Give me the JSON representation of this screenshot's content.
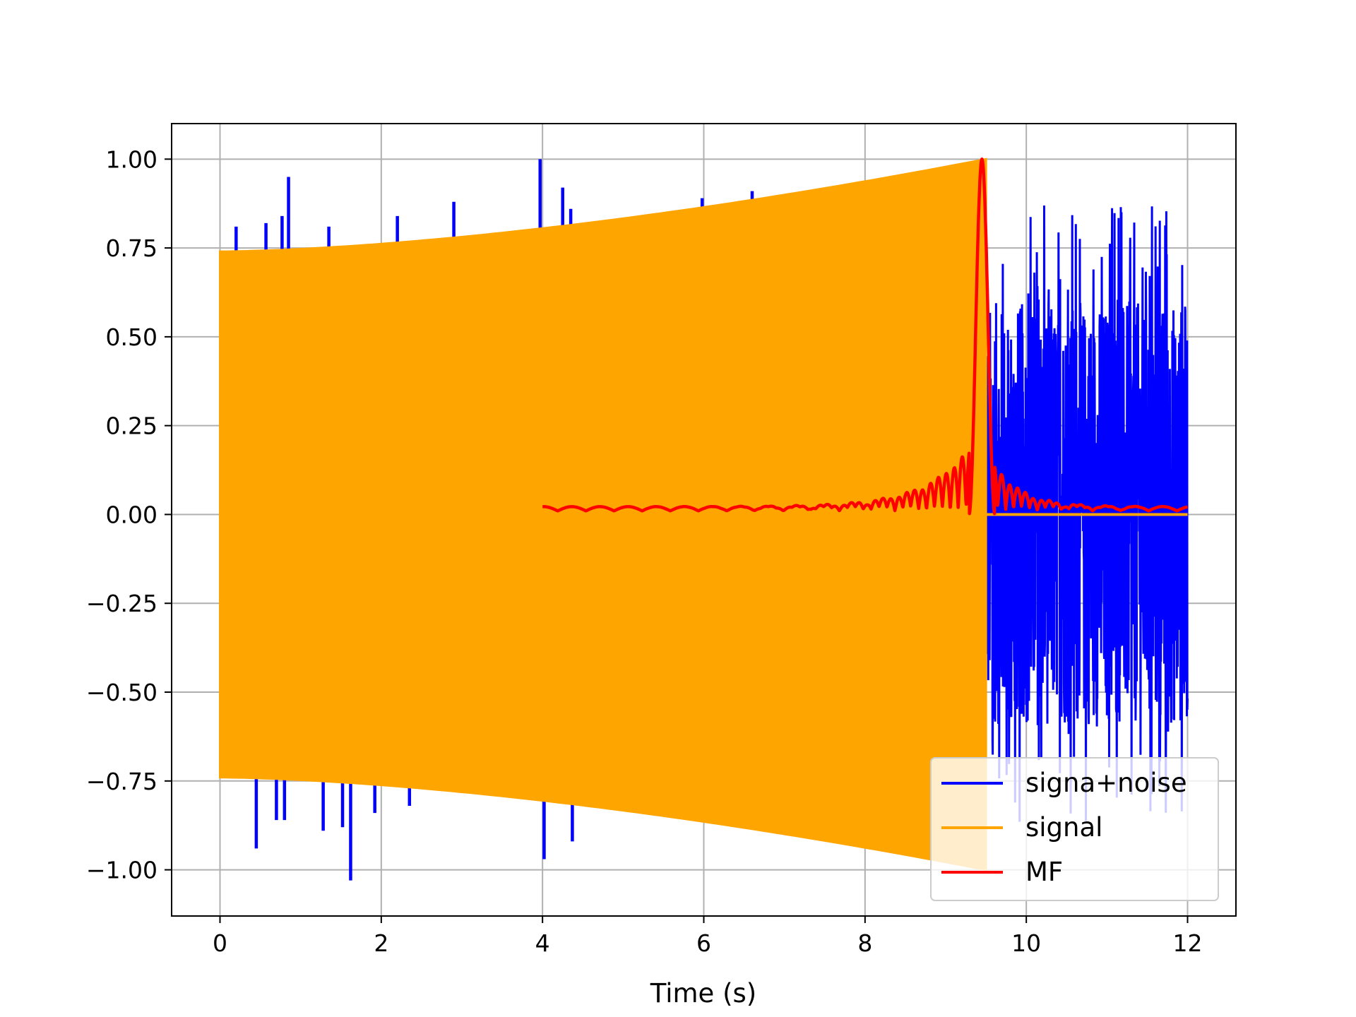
{
  "chart_data": {
    "type": "line",
    "title": "",
    "xlabel": "Time (s)",
    "ylabel": "",
    "xlim": [
      -0.6,
      12.6
    ],
    "ylim": [
      -1.13,
      1.1
    ],
    "grid": true,
    "legend_position": "lower-right",
    "x_ticks": [
      0,
      2,
      4,
      6,
      8,
      10,
      12
    ],
    "x_tick_labels": [
      "0",
      "2",
      "4",
      "6",
      "8",
      "10",
      "12"
    ],
    "y_ticks": [
      1.0,
      0.75,
      0.5,
      0.25,
      0.0,
      -0.25,
      -0.5,
      -0.75,
      -1.0
    ],
    "y_tick_labels": [
      "1.00",
      "0.75",
      "0.50",
      "0.25",
      "0.00",
      "−0.25",
      "−0.50",
      "−0.75",
      "−1.00"
    ],
    "series": [
      {
        "name": "signa+noise",
        "color": "#0000ff",
        "t_end": 12.0,
        "noise_start": 9.5,
        "noise_amplitude": 0.6,
        "spikes": [
          {
            "x": 0.2,
            "y": 0.81
          },
          {
            "x": 0.57,
            "y": 0.82
          },
          {
            "x": 0.77,
            "y": 0.84
          },
          {
            "x": 0.85,
            "y": 0.95
          },
          {
            "x": 1.35,
            "y": 0.81
          },
          {
            "x": 2.2,
            "y": 0.84
          },
          {
            "x": 2.9,
            "y": 0.88
          },
          {
            "x": 3.97,
            "y": 1.0
          },
          {
            "x": 4.25,
            "y": 0.92
          },
          {
            "x": 4.35,
            "y": 0.86
          },
          {
            "x": 5.98,
            "y": 0.89
          },
          {
            "x": 6.6,
            "y": 0.91
          },
          {
            "x": 0.45,
            "y": -0.94
          },
          {
            "x": 0.7,
            "y": -0.86
          },
          {
            "x": 0.8,
            "y": -0.86
          },
          {
            "x": 1.28,
            "y": -0.89
          },
          {
            "x": 1.52,
            "y": -0.88
          },
          {
            "x": 1.62,
            "y": -1.03
          },
          {
            "x": 1.92,
            "y": -0.84
          },
          {
            "x": 2.35,
            "y": -0.82
          },
          {
            "x": 4.02,
            "y": -0.97
          },
          {
            "x": 4.37,
            "y": -0.92
          }
        ]
      },
      {
        "name": "signal",
        "color": "#ffa500",
        "t_start": 0.0,
        "t_end": 9.5,
        "envelope_start": 0.74,
        "envelope_end": 1.0
      },
      {
        "name": "MF",
        "color": "#ff0000",
        "t_start": 4.0,
        "t_end": 12.0,
        "peak_x": 9.45,
        "peak_y": 1.0,
        "baseline": 0.01
      }
    ]
  }
}
